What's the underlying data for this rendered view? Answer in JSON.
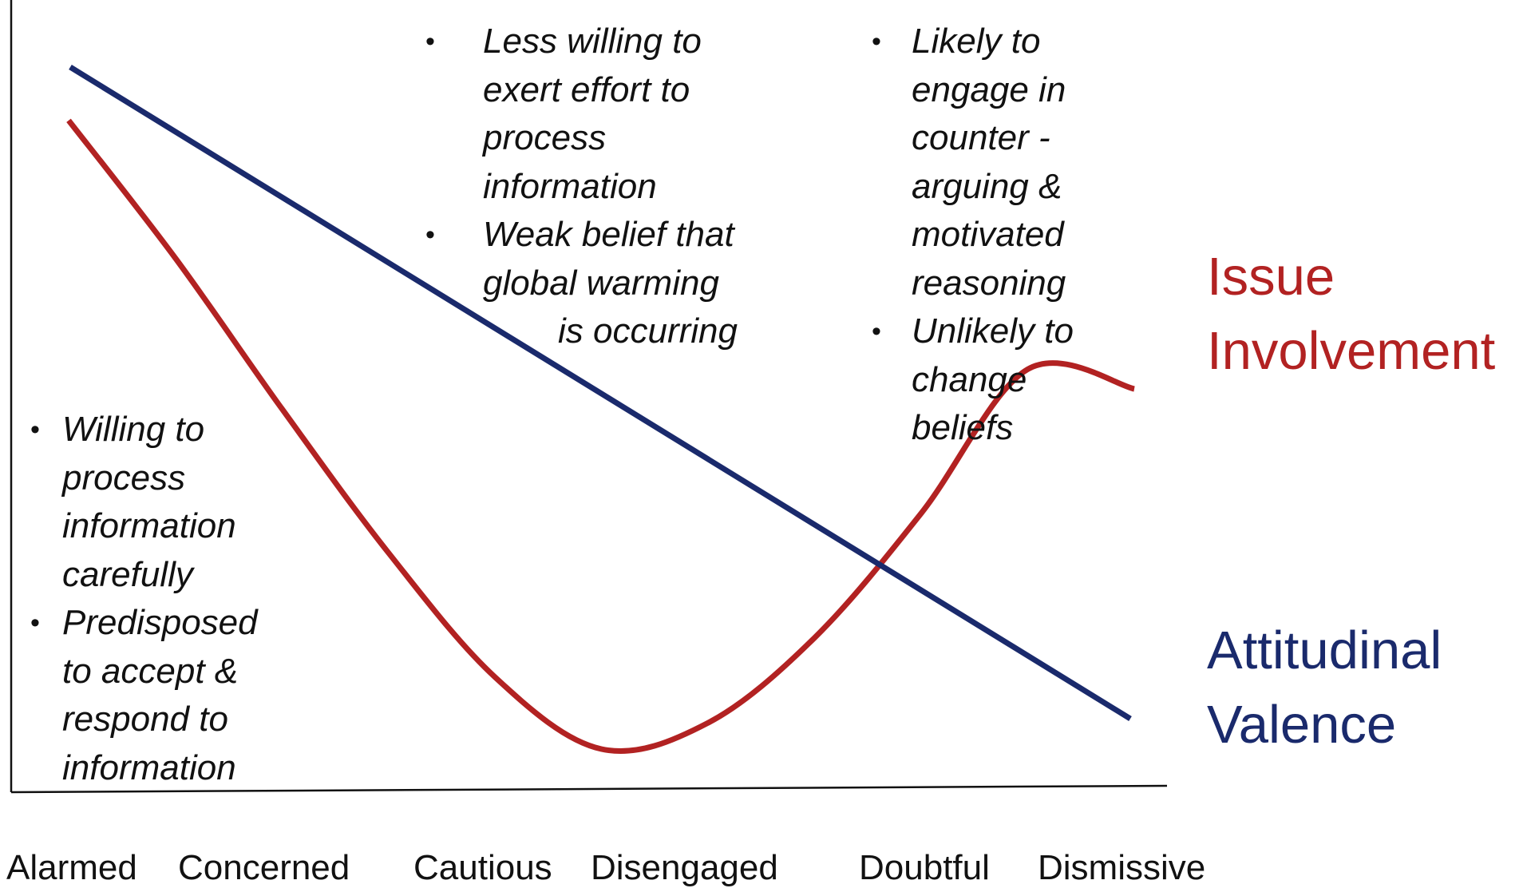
{
  "chart_data": {
    "type": "line",
    "categories": [
      "Alarmed",
      "Concerned",
      "Cautious",
      "Disengaged",
      "Doubtful",
      "Dismissive"
    ],
    "series": [
      {
        "name": "Attitudinal Valence",
        "color": "#1a2a6c",
        "values": [
          {
            "x": 0.0,
            "y": 1.0
          },
          {
            "x": 1.0,
            "y": 0.0
          }
        ]
      },
      {
        "name": "Issue Involvement",
        "color": "#b22222",
        "values": [
          {
            "x": 0.0,
            "y": 0.96
          },
          {
            "x": 0.1,
            "y": 0.75
          },
          {
            "x": 0.2,
            "y": 0.52
          },
          {
            "x": 0.3,
            "y": 0.3
          },
          {
            "x": 0.4,
            "y": 0.11
          },
          {
            "x": 0.5,
            "y": 0.0
          },
          {
            "x": 0.6,
            "y": 0.04
          },
          {
            "x": 0.7,
            "y": 0.17
          },
          {
            "x": 0.8,
            "y": 0.36
          },
          {
            "x": 0.9,
            "y": 0.58
          },
          {
            "x": 1.0,
            "y": 0.55
          }
        ]
      }
    ],
    "grid": false,
    "legend": "right"
  },
  "annotations": {
    "left": [
      [
        "Willing to",
        "process",
        "information",
        "carefully"
      ],
      [
        "Predisposed",
        "to accept &",
        "respond to",
        "information"
      ]
    ],
    "middle": [
      [
        "Less willing to",
        "exert effort to",
        "process",
        "information"
      ],
      [
        "Weak belief that",
        "global warming",
        "is occurring"
      ]
    ],
    "right": [
      [
        "Likely to",
        "engage in",
        "counter  -",
        "arguing &",
        "motivated",
        "reasoning"
      ],
      [
        "Unlikely to",
        "change",
        "beliefs"
      ]
    ]
  },
  "labels": {
    "issue": [
      "Issue",
      "Involvement"
    ],
    "valence": [
      "Attitudinal",
      "Valence"
    ]
  }
}
